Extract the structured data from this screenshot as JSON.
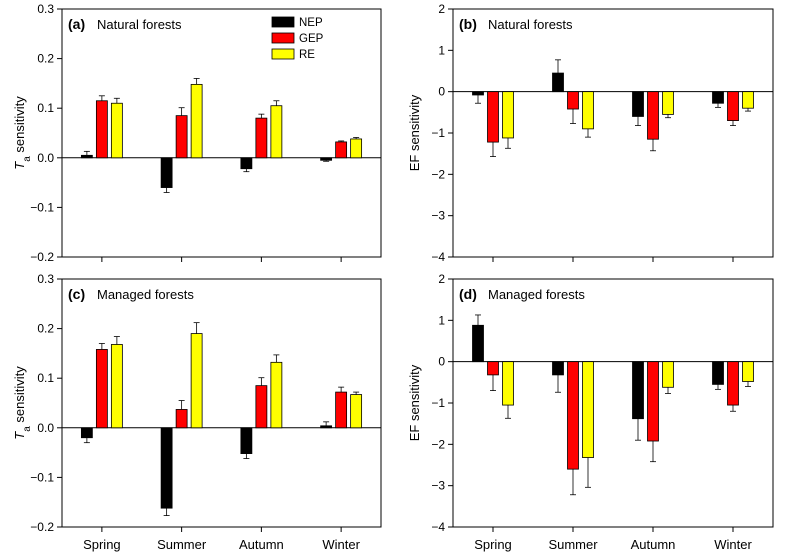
{
  "chart_data": [
    {
      "type": "bar",
      "panel_letter": "(a)",
      "title": "Natural forests",
      "ylabel_main": "T",
      "ylabel_sub": "a",
      "ylabel_rest": " sensitivity",
      "ylim": [
        -0.2,
        0.3
      ],
      "yticks": [
        -0.2,
        -0.1,
        0.0,
        0.1,
        0.2,
        0.3
      ],
      "ytick_labels": [
        "−0.2",
        "−0.1",
        "0.0",
        "0.1",
        "0.2",
        "0.3"
      ],
      "categories": [
        "Spring",
        "Summer",
        "Autumn",
        "Winter"
      ],
      "series": [
        {
          "name": "NEP",
          "color": "#000000",
          "values": [
            0.005,
            -0.06,
            -0.022,
            -0.005
          ],
          "errors": [
            0.008,
            0.01,
            0.006,
            0.002
          ]
        },
        {
          "name": "GEP",
          "color": "#ff0000",
          "values": [
            0.115,
            0.085,
            0.08,
            0.032
          ],
          "errors": [
            0.01,
            0.016,
            0.008,
            0.002
          ]
        },
        {
          "name": "RE",
          "color": "#ffff00",
          "values": [
            0.11,
            0.148,
            0.105,
            0.038
          ],
          "errors": [
            0.01,
            0.012,
            0.01,
            0.003
          ]
        }
      ],
      "legend": true,
      "legend_position": "top-center"
    },
    {
      "type": "bar",
      "panel_letter": "(b)",
      "title": "Natural forests",
      "ylabel_main": "EF sensitivity",
      "ylabel_sub": "",
      "ylabel_rest": "",
      "ylim": [
        -4,
        2
      ],
      "yticks": [
        -4,
        -3,
        -2,
        -1,
        0,
        1,
        2
      ],
      "ytick_labels": [
        "−4",
        "−3",
        "−2",
        "−1",
        "0",
        "1",
        "2"
      ],
      "categories": [
        "Spring",
        "Summer",
        "Autumn",
        "Winter"
      ],
      "series": [
        {
          "name": "NEP",
          "color": "#000000",
          "values": [
            -0.08,
            0.45,
            -0.6,
            -0.28
          ],
          "errors": [
            0.2,
            0.32,
            0.22,
            0.1
          ]
        },
        {
          "name": "GEP",
          "color": "#ff0000",
          "values": [
            -1.22,
            -0.42,
            -1.15,
            -0.7
          ],
          "errors": [
            0.35,
            0.35,
            0.28,
            0.12
          ]
        },
        {
          "name": "RE",
          "color": "#ffff00",
          "values": [
            -1.12,
            -0.9,
            -0.55,
            -0.4
          ],
          "errors": [
            0.25,
            0.2,
            0.08,
            0.07
          ]
        }
      ],
      "legend": false
    },
    {
      "type": "bar",
      "panel_letter": "(c)",
      "title": "Managed forests",
      "ylabel_main": "T",
      "ylabel_sub": "a",
      "ylabel_rest": " sensitivity",
      "ylim": [
        -0.2,
        0.3
      ],
      "yticks": [
        -0.2,
        -0.1,
        0.0,
        0.1,
        0.2,
        0.3
      ],
      "ytick_labels": [
        "−0.2",
        "−0.1",
        "0.0",
        "0.1",
        "0.2",
        "0.3"
      ],
      "categories": [
        "Spring",
        "Summer",
        "Autumn",
        "Winter"
      ],
      "series": [
        {
          "name": "NEP",
          "color": "#000000",
          "values": [
            -0.02,
            -0.162,
            -0.052,
            0.004
          ],
          "errors": [
            0.01,
            0.015,
            0.01,
            0.008
          ]
        },
        {
          "name": "GEP",
          "color": "#ff0000",
          "values": [
            0.158,
            0.037,
            0.085,
            0.072
          ],
          "errors": [
            0.012,
            0.018,
            0.016,
            0.01
          ]
        },
        {
          "name": "RE",
          "color": "#ffff00",
          "values": [
            0.168,
            0.19,
            0.132,
            0.067
          ],
          "errors": [
            0.016,
            0.022,
            0.015,
            0.005
          ]
        }
      ],
      "legend": false
    },
    {
      "type": "bar",
      "panel_letter": "(d)",
      "title": "Managed forests",
      "ylabel_main": "EF sensitivity",
      "ylabel_sub": "",
      "ylabel_rest": "",
      "ylim": [
        -4,
        2
      ],
      "yticks": [
        -4,
        -3,
        -2,
        -1,
        0,
        1,
        2
      ],
      "ytick_labels": [
        "−4",
        "−3",
        "−2",
        "−1",
        "0",
        "1",
        "2"
      ],
      "categories": [
        "Spring",
        "Summer",
        "Autumn",
        "Winter"
      ],
      "series": [
        {
          "name": "NEP",
          "color": "#000000",
          "values": [
            0.88,
            -0.32,
            -1.38,
            -0.55
          ],
          "errors": [
            0.25,
            0.42,
            0.52,
            0.12
          ]
        },
        {
          "name": "GEP",
          "color": "#ff0000",
          "values": [
            -0.32,
            -2.6,
            -1.92,
            -1.05
          ],
          "errors": [
            0.38,
            0.62,
            0.5,
            0.15
          ]
        },
        {
          "name": "RE",
          "color": "#ffff00",
          "values": [
            -1.05,
            -2.32,
            -0.62,
            -0.48
          ],
          "errors": [
            0.32,
            0.72,
            0.15,
            0.12
          ]
        }
      ],
      "legend": false
    }
  ]
}
